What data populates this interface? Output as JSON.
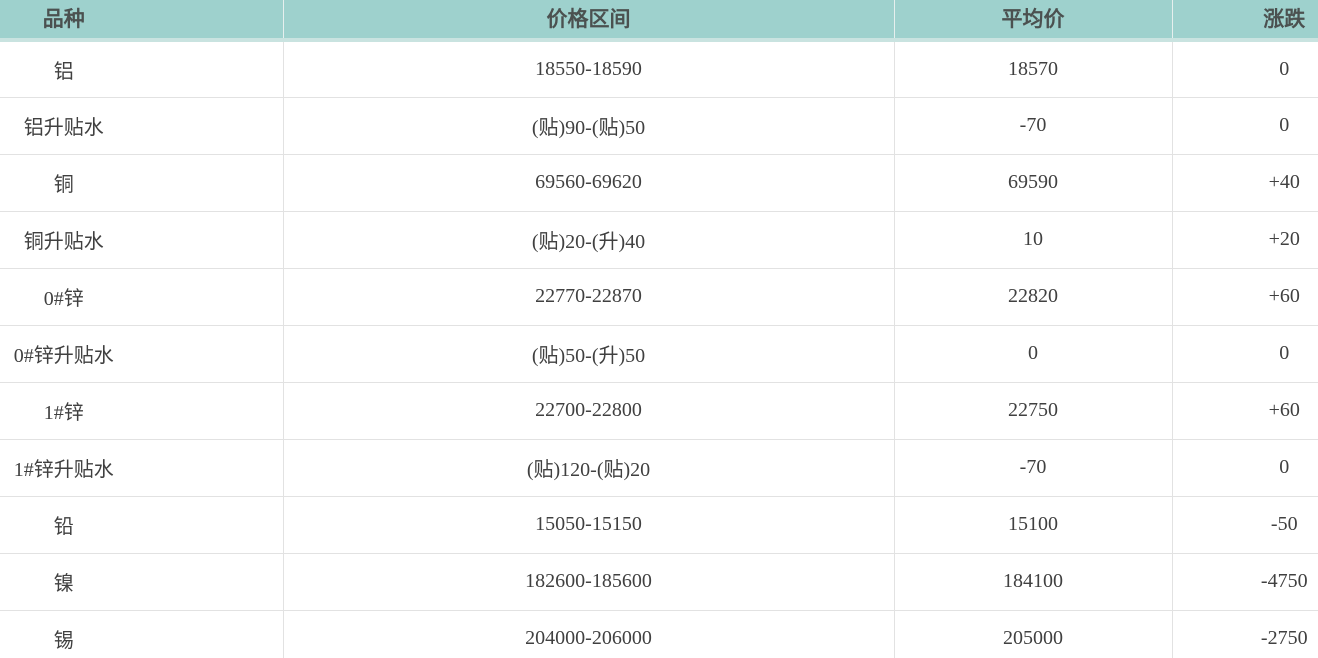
{
  "chart_data": {
    "type": "table",
    "columns": [
      "品种",
      "价格区间",
      "平均价",
      "涨跌"
    ],
    "rows": [
      {
        "variety": "铝",
        "price_range": "18550-18590",
        "average_price": "18570",
        "change": "0"
      },
      {
        "variety": "铝升贴水",
        "price_range": "(贴)90-(贴)50",
        "average_price": "-70",
        "change": "0"
      },
      {
        "variety": "铜",
        "price_range": "69560-69620",
        "average_price": "69590",
        "change": "+40"
      },
      {
        "variety": "铜升贴水",
        "price_range": "(贴)20-(升)40",
        "average_price": "10",
        "change": "+20"
      },
      {
        "variety": "0#锌",
        "price_range": "22770-22870",
        "average_price": "22820",
        "change": "+60"
      },
      {
        "variety": "0#锌升贴水",
        "price_range": "(贴)50-(升)50",
        "average_price": "0",
        "change": "0"
      },
      {
        "variety": "1#锌",
        "price_range": "22700-22800",
        "average_price": "22750",
        "change": "+60"
      },
      {
        "variety": "1#锌升贴水",
        "price_range": "(贴)120-(贴)20",
        "average_price": "-70",
        "change": "0"
      },
      {
        "variety": "铅",
        "price_range": "15050-15150",
        "average_price": "15100",
        "change": "-50"
      },
      {
        "variety": "镍",
        "price_range": "182600-185600",
        "average_price": "184100",
        "change": "-4750"
      },
      {
        "variety": "锡",
        "price_range": "204000-206000",
        "average_price": "205000",
        "change": "-2750"
      }
    ],
    "layout": {
      "header_background": "#9ed1cd",
      "header_text_color": "#4b5150",
      "body_text_color": "#404040",
      "grid_line_color": "#e2e2e2",
      "grid": true
    }
  }
}
